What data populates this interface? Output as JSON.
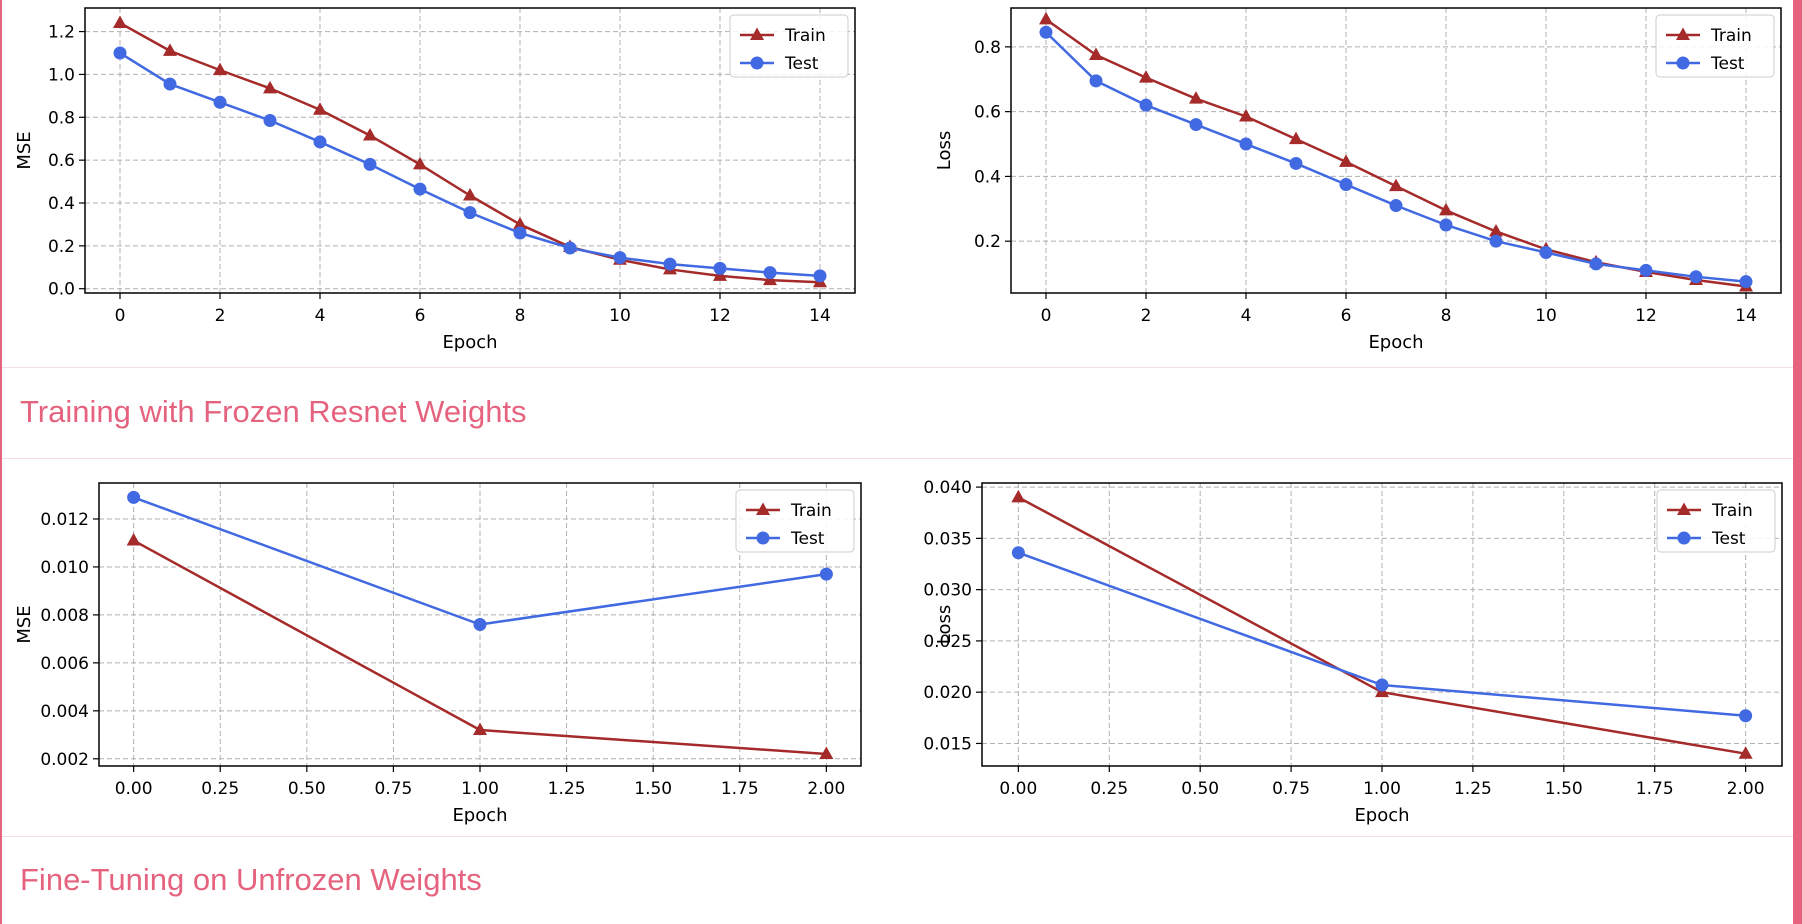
{
  "sections": {
    "frozen_title": "Training with Frozen Resnet Weights",
    "finetune_title": "Fine-Tuning on Unfrozen Weights"
  },
  "colors": {
    "accent": "#e5637f",
    "train": "#a52a2a",
    "test": "#4169e1",
    "grid": "#b0b0b0"
  },
  "chart_data": [
    {
      "type": "line",
      "xlabel": "Epoch",
      "ylabel": "MSE",
      "xlim": [
        -0.7,
        14.7
      ],
      "ylim": [
        -0.02,
        1.31
      ],
      "xticks": [
        0,
        2,
        4,
        6,
        8,
        10,
        12,
        14
      ],
      "xtick_labels": [
        "0",
        "2",
        "4",
        "6",
        "8",
        "10",
        "12",
        "14"
      ],
      "yticks": [
        0.0,
        0.2,
        0.4,
        0.6,
        0.8,
        1.0,
        1.2
      ],
      "ytick_labels": [
        "0.0",
        "0.2",
        "0.4",
        "0.6",
        "0.8",
        "1.0",
        "1.2"
      ],
      "grid": true,
      "legend": "top-right",
      "x": [
        0,
        1,
        2,
        3,
        4,
        5,
        6,
        7,
        8,
        9,
        10,
        11,
        12,
        13,
        14
      ],
      "series": [
        {
          "name": "Train",
          "marker": "triangle",
          "color": "#a52a2a",
          "values": [
            1.24,
            1.11,
            1.02,
            0.935,
            0.835,
            0.715,
            0.58,
            0.435,
            0.3,
            0.195,
            0.135,
            0.09,
            0.06,
            0.04,
            0.03
          ]
        },
        {
          "name": "Test",
          "marker": "circle",
          "color": "#4169e1",
          "values": [
            1.1,
            0.955,
            0.87,
            0.785,
            0.685,
            0.58,
            0.465,
            0.355,
            0.26,
            0.19,
            0.145,
            0.115,
            0.095,
            0.075,
            0.06
          ]
        }
      ]
    },
    {
      "type": "line",
      "xlabel": "Epoch",
      "ylabel": "Loss",
      "xlim": [
        -0.7,
        14.7
      ],
      "ylim": [
        0.04,
        0.92
      ],
      "xticks": [
        0,
        2,
        4,
        6,
        8,
        10,
        12,
        14
      ],
      "xtick_labels": [
        "0",
        "2",
        "4",
        "6",
        "8",
        "10",
        "12",
        "14"
      ],
      "yticks": [
        0.2,
        0.4,
        0.6,
        0.8
      ],
      "ytick_labels": [
        "0.2",
        "0.4",
        "0.6",
        "0.8"
      ],
      "grid": true,
      "legend": "top-right",
      "x": [
        0,
        1,
        2,
        3,
        4,
        5,
        6,
        7,
        8,
        9,
        10,
        11,
        12,
        13,
        14
      ],
      "series": [
        {
          "name": "Train",
          "marker": "triangle",
          "color": "#a52a2a",
          "values": [
            0.885,
            0.775,
            0.705,
            0.64,
            0.585,
            0.515,
            0.445,
            0.37,
            0.295,
            0.23,
            0.175,
            0.135,
            0.105,
            0.08,
            0.06
          ]
        },
        {
          "name": "Test",
          "marker": "circle",
          "color": "#4169e1",
          "values": [
            0.845,
            0.695,
            0.62,
            0.56,
            0.5,
            0.44,
            0.375,
            0.31,
            0.25,
            0.2,
            0.165,
            0.13,
            0.11,
            0.09,
            0.075
          ]
        }
      ]
    },
    {
      "type": "line",
      "xlabel": "Epoch",
      "ylabel": "MSE",
      "xlim": [
        -0.1,
        2.1
      ],
      "ylim": [
        0.0017,
        0.0135
      ],
      "xticks": [
        0,
        0.25,
        0.5,
        0.75,
        1.0,
        1.25,
        1.5,
        1.75,
        2.0
      ],
      "xtick_labels": [
        "0.00",
        "0.25",
        "0.50",
        "0.75",
        "1.00",
        "1.25",
        "1.50",
        "1.75",
        "2.00"
      ],
      "yticks": [
        0.002,
        0.004,
        0.006,
        0.008,
        0.01,
        0.012
      ],
      "ytick_labels": [
        "0.002",
        "0.004",
        "0.006",
        "0.008",
        "0.010",
        "0.012"
      ],
      "grid": true,
      "legend": "top-right",
      "x": [
        0,
        1,
        2
      ],
      "series": [
        {
          "name": "Train",
          "marker": "triangle",
          "color": "#a52a2a",
          "values": [
            0.0111,
            0.0032,
            0.0022
          ]
        },
        {
          "name": "Test",
          "marker": "circle",
          "color": "#4169e1",
          "values": [
            0.0129,
            0.0076,
            0.0097
          ]
        }
      ]
    },
    {
      "type": "line",
      "xlabel": "Epoch",
      "ylabel": "Loss",
      "xlim": [
        -0.1,
        2.1
      ],
      "ylim": [
        0.0128,
        0.0404
      ],
      "xticks": [
        0,
        0.25,
        0.5,
        0.75,
        1.0,
        1.25,
        1.5,
        1.75,
        2.0
      ],
      "xtick_labels": [
        "0.00",
        "0.25",
        "0.50",
        "0.75",
        "1.00",
        "1.25",
        "1.50",
        "1.75",
        "2.00"
      ],
      "yticks": [
        0.015,
        0.02,
        0.025,
        0.03,
        0.035,
        0.04
      ],
      "ytick_labels": [
        "0.015",
        "0.020",
        "0.025",
        "0.030",
        "0.035",
        "0.040"
      ],
      "grid": true,
      "legend": "top-right",
      "x": [
        0,
        1,
        2
      ],
      "series": [
        {
          "name": "Train",
          "marker": "triangle",
          "color": "#a52a2a",
          "values": [
            0.039,
            0.02,
            0.014
          ]
        },
        {
          "name": "Test",
          "marker": "circle",
          "color": "#4169e1",
          "values": [
            0.0336,
            0.0207,
            0.0177
          ]
        }
      ]
    }
  ]
}
